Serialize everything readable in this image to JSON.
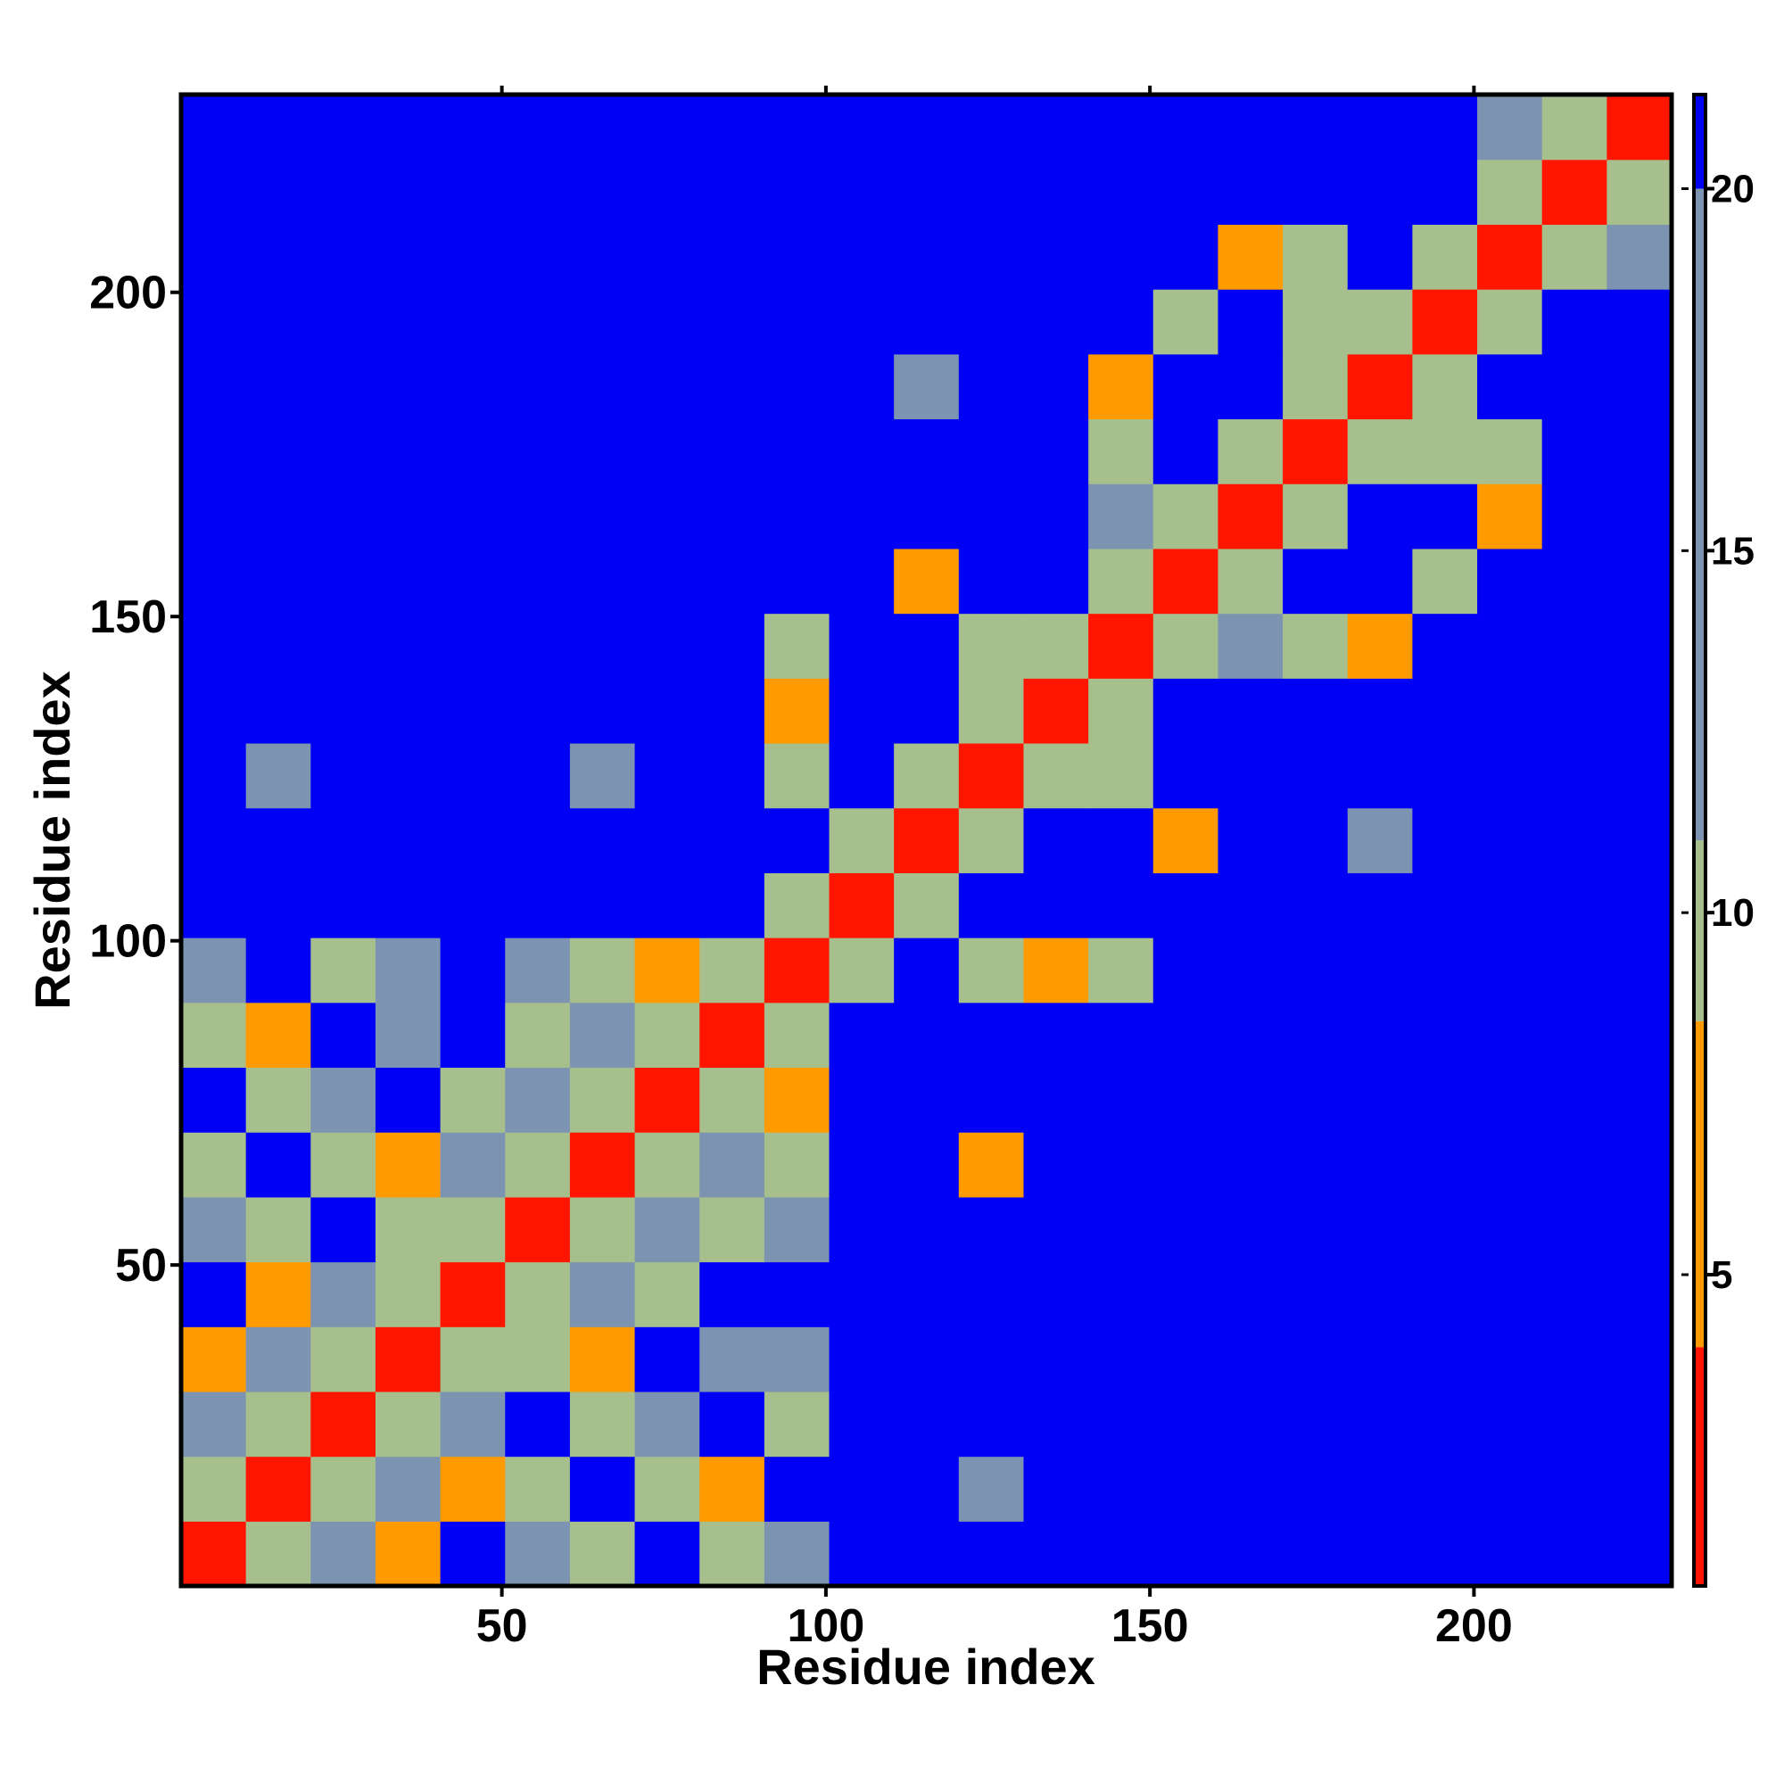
{
  "chart_data": {
    "type": "heatmap",
    "x_label": "Residue index",
    "y_label": "Residue index",
    "xbins": [
      0.5,
      10.5,
      20.5,
      30.5,
      40.5,
      50.5,
      60.5,
      70.5,
      80.5,
      90.5,
      100.5,
      110.5,
      120.5,
      130.5,
      140.5,
      150.5,
      160.5,
      170.5,
      180.5,
      190.5,
      200.5,
      210.5,
      220.5,
      230.5
    ],
    "ybins": [
      0.5,
      10.5,
      20.5,
      30.5,
      40.5,
      50.5,
      60.5,
      70.5,
      80.5,
      90.5,
      100.5,
      110.5,
      120.5,
      130.5,
      140.5,
      150.5,
      160.5,
      170.5,
      180.5,
      190.5,
      200.5,
      210.5,
      220.5,
      230.5
    ],
    "xlim": [
      0.5,
      230.5
    ],
    "ylim": [
      0.5,
      230.5
    ],
    "xticks": [
      50,
      100,
      150,
      200
    ],
    "yticks": [
      50,
      100,
      150,
      200
    ],
    "zlim": [
      0.7,
      21.3
    ],
    "zticks": [
      5,
      10,
      15,
      20
    ],
    "color_breaks": [
      0.7,
      4,
      8.5,
      11,
      20,
      21.3
    ],
    "color_list": [
      "#ff1500",
      "#ff9a00",
      "#a7bf8c",
      "#7c93b2",
      "#0000f5"
    ],
    "values": [
      [
        2,
        9,
        13,
        8,
        21,
        13,
        10,
        21,
        10,
        13,
        21,
        21,
        21,
        21,
        21,
        21,
        21,
        21,
        21,
        21,
        21,
        21,
        21
      ],
      [
        9,
        2,
        9,
        12,
        8,
        10,
        21,
        10,
        7,
        21,
        21,
        21,
        12,
        21,
        21,
        21,
        21,
        21,
        21,
        21,
        21,
        21,
        21
      ],
      [
        13,
        9,
        2,
        9,
        12,
        21,
        10,
        13,
        21,
        10,
        21,
        21,
        21,
        21,
        21,
        21,
        21,
        21,
        21,
        21,
        21,
        21,
        21
      ],
      [
        8,
        12,
        9,
        2,
        9,
        10,
        6,
        21,
        12,
        13,
        21,
        21,
        21,
        21,
        21,
        21,
        21,
        21,
        21,
        21,
        21,
        21,
        21
      ],
      [
        21,
        8,
        12,
        9,
        2,
        9,
        12,
        10,
        21,
        21,
        21,
        21,
        21,
        21,
        21,
        21,
        21,
        21,
        21,
        21,
        21,
        21,
        21
      ],
      [
        13,
        10,
        21,
        10,
        9,
        2,
        9,
        12,
        10,
        13,
        21,
        21,
        21,
        21,
        21,
        21,
        21,
        21,
        21,
        21,
        21,
        21,
        21
      ],
      [
        10,
        21,
        10,
        6,
        12,
        9,
        2,
        9,
        13,
        10,
        21,
        21,
        8,
        21,
        21,
        21,
        21,
        21,
        21,
        21,
        21,
        21,
        21
      ],
      [
        21,
        10,
        13,
        21,
        10,
        12,
        9,
        2,
        9,
        7,
        21,
        21,
        21,
        21,
        21,
        21,
        21,
        21,
        21,
        21,
        21,
        21,
        21
      ],
      [
        10,
        7,
        21,
        12,
        21,
        10,
        13,
        9,
        2,
        9,
        21,
        21,
        21,
        21,
        21,
        21,
        21,
        21,
        21,
        21,
        21,
        21,
        21
      ],
      [
        13,
        21,
        10,
        13,
        21,
        13,
        10,
        7,
        9,
        2,
        9,
        21,
        10,
        8,
        10,
        21,
        21,
        21,
        21,
        21,
        21,
        21,
        21
      ],
      [
        21,
        21,
        21,
        21,
        21,
        21,
        21,
        21,
        21,
        9,
        2,
        9,
        21,
        21,
        21,
        21,
        21,
        21,
        21,
        21,
        21,
        21,
        21
      ],
      [
        21,
        21,
        21,
        21,
        21,
        21,
        21,
        21,
        21,
        21,
        9,
        2,
        9,
        21,
        21,
        7,
        21,
        21,
        13,
        21,
        21,
        21,
        21
      ],
      [
        21,
        12,
        21,
        21,
        21,
        21,
        13,
        21,
        21,
        10,
        21,
        9,
        2,
        9,
        10,
        21,
        21,
        21,
        21,
        21,
        21,
        21,
        21
      ],
      [
        21,
        21,
        21,
        21,
        21,
        21,
        21,
        21,
        21,
        8,
        21,
        21,
        9,
        2,
        9,
        21,
        21,
        21,
        21,
        21,
        21,
        21,
        21
      ],
      [
        21,
        21,
        21,
        21,
        21,
        21,
        21,
        21,
        21,
        10,
        21,
        21,
        10,
        9,
        2,
        9,
        12,
        10,
        8,
        21,
        21,
        21,
        21
      ],
      [
        21,
        21,
        21,
        21,
        21,
        21,
        21,
        21,
        21,
        21,
        21,
        7,
        21,
        21,
        9,
        2,
        9,
        21,
        21,
        9,
        21,
        21,
        21
      ],
      [
        21,
        21,
        21,
        21,
        21,
        21,
        21,
        21,
        21,
        21,
        21,
        21,
        21,
        21,
        12,
        9,
        2,
        9,
        21,
        21,
        8,
        21,
        21
      ],
      [
        21,
        21,
        21,
        21,
        21,
        21,
        21,
        21,
        21,
        21,
        21,
        21,
        21,
        21,
        10,
        21,
        9,
        2,
        9,
        10,
        10,
        21,
        21
      ],
      [
        21,
        21,
        21,
        21,
        21,
        21,
        21,
        21,
        21,
        21,
        21,
        13,
        21,
        21,
        8,
        21,
        21,
        9,
        2,
        9,
        21,
        21,
        21
      ],
      [
        21,
        21,
        21,
        21,
        21,
        21,
        21,
        21,
        21,
        21,
        21,
        21,
        21,
        21,
        21,
        9,
        21,
        10,
        9,
        2,
        9,
        21,
        21
      ],
      [
        21,
        21,
        21,
        21,
        21,
        21,
        21,
        21,
        21,
        21,
        21,
        21,
        21,
        21,
        21,
        21,
        8,
        10,
        21,
        9,
        2,
        9,
        13
      ],
      [
        21,
        21,
        21,
        21,
        21,
        21,
        21,
        21,
        21,
        21,
        21,
        21,
        21,
        21,
        21,
        21,
        21,
        21,
        21,
        21,
        9,
        2,
        9
      ],
      [
        21,
        21,
        21,
        21,
        21,
        21,
        21,
        21,
        21,
        21,
        21,
        21,
        21,
        21,
        21,
        21,
        21,
        21,
        21,
        21,
        13,
        9,
        2
      ]
    ]
  }
}
